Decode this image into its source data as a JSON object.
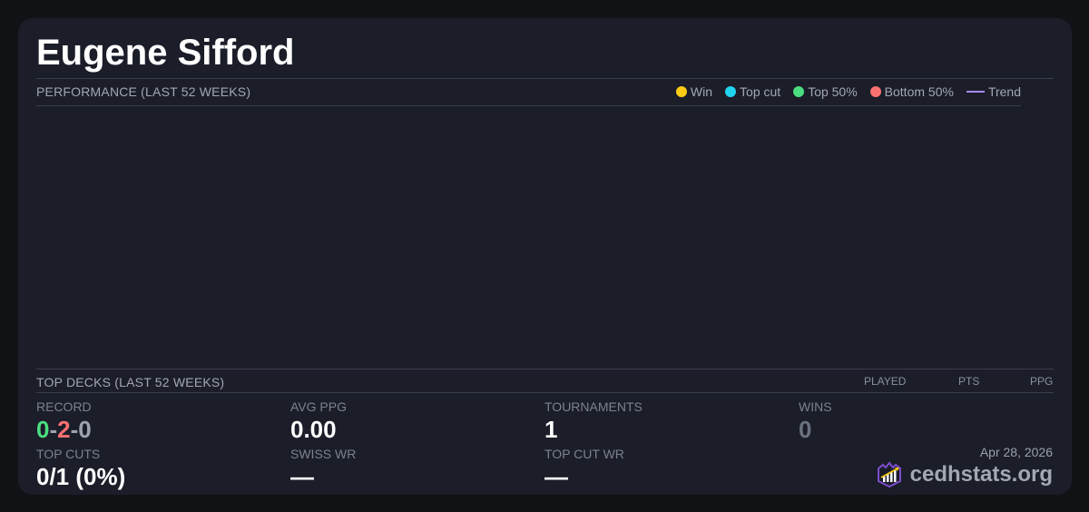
{
  "title": "Eugene Sifford",
  "performance": {
    "heading": "PERFORMANCE (LAST 52 WEEKS)",
    "legend": [
      {
        "label": "Win",
        "color": "#facc15"
      },
      {
        "label": "Top cut",
        "color": "#22d3ee"
      },
      {
        "label": "Top 50%",
        "color": "#4ade80"
      },
      {
        "label": "Bottom 50%",
        "color": "#f87171"
      },
      {
        "label": "Trend",
        "color": "#a78bfa"
      }
    ]
  },
  "top_decks": {
    "heading": "TOP DECKS (LAST 52 WEEKS)",
    "columns": [
      "PLAYED",
      "PTS",
      "PPG"
    ]
  },
  "stats": {
    "record": {
      "label": "RECORD",
      "wins": "0",
      "losses": "2",
      "draws": "0",
      "sep": "-"
    },
    "avg_ppg": {
      "label": "AVG PPG",
      "value": "0.00"
    },
    "tournaments": {
      "label": "TOURNAMENTS",
      "value": "1"
    },
    "wins": {
      "label": "WINS",
      "value": "0"
    },
    "top_cuts": {
      "label": "TOP CUTS",
      "value": "0/1 (0%)"
    },
    "swiss_wr": {
      "label": "SWISS WR",
      "value": "—"
    },
    "top_cut_wr": {
      "label": "TOP CUT WR",
      "value": "—"
    }
  },
  "footer": {
    "date": "Apr 28, 2026",
    "brand": "cedhstats.org"
  }
}
